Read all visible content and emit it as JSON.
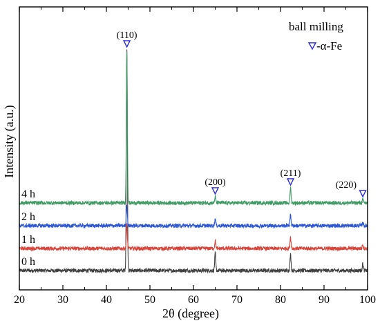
{
  "chart_data": {
    "type": "line",
    "title": "",
    "xlabel": "2θ (degree)",
    "ylabel": "Intensity (a.u.)",
    "xlim": [
      20,
      100
    ],
    "x_ticks": [
      20,
      30,
      40,
      50,
      60,
      70,
      80,
      90,
      100
    ],
    "y_ticks_shown": false,
    "grid": false,
    "legend": {
      "title": "ball milling",
      "position": "top-right",
      "entries": [
        {
          "marker": "open-down-triangle",
          "label": "-α-Fe",
          "color": "#2b2bd6"
        }
      ]
    },
    "peaks": [
      {
        "x": 44.7,
        "label": "(110)"
      },
      {
        "x": 65.0,
        "label": "(200)"
      },
      {
        "x": 82.3,
        "label": "(211)"
      },
      {
        "x": 98.9,
        "label": "(220)"
      }
    ],
    "peak_marker": {
      "shape": "open-down-triangle",
      "color": "#2b2bd6"
    },
    "series": [
      {
        "name": "0 h",
        "color": "#404040",
        "baseline": 1.0,
        "peak_heights": [
          32.0,
          2.5,
          2.3,
          1.0
        ]
      },
      {
        "name": "1 h",
        "color": "#d9443a",
        "baseline": 4.2,
        "peak_heights": [
          3.4,
          1.1,
          1.7,
          0.6
        ]
      },
      {
        "name": "2 h",
        "color": "#2b57d6",
        "baseline": 7.5,
        "peak_heights": [
          3.1,
          1.0,
          1.6,
          0.5
        ]
      },
      {
        "name": "4 h",
        "color": "#3f9a63",
        "baseline": 10.8,
        "peak_heights": [
          22.0,
          0.9,
          2.2,
          0.5
        ]
      }
    ]
  }
}
